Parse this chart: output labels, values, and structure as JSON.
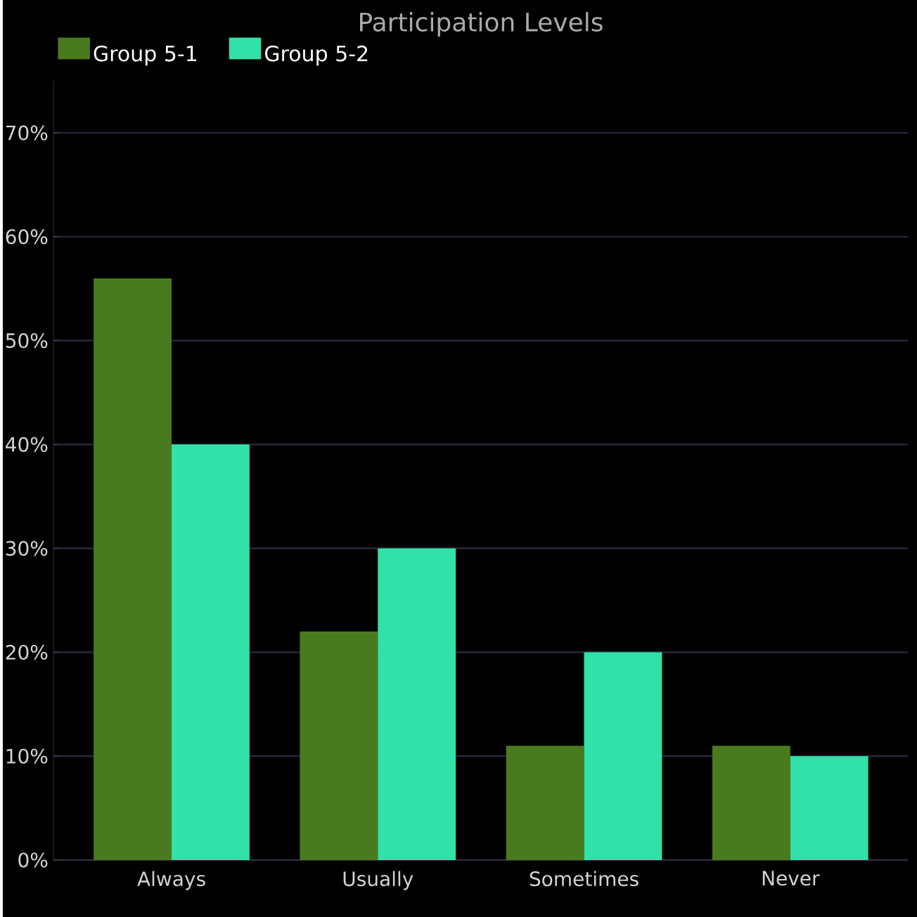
{
  "chart_data": {
    "type": "bar",
    "title": "Participation Levels",
    "categories": [
      "Always",
      "Usually",
      "Sometimes",
      "Never"
    ],
    "series": [
      {
        "name": "Group 5-1",
        "color": "#4a7a1e",
        "values": [
          56,
          22,
          11,
          11
        ]
      },
      {
        "name": "Group 5-2",
        "color": "#31e1a9",
        "values": [
          40,
          30,
          20,
          10
        ]
      }
    ],
    "ylim": [
      0,
      75
    ],
    "yticks": [
      {
        "value": 0,
        "label": "0%"
      },
      {
        "value": 10,
        "label": "10%"
      },
      {
        "value": 20,
        "label": "20%"
      },
      {
        "value": 30,
        "label": "30%"
      },
      {
        "value": 40,
        "label": "40%"
      },
      {
        "value": 50,
        "label": "50%"
      },
      {
        "value": 60,
        "label": "60%"
      },
      {
        "value": 70,
        "label": "70%"
      }
    ],
    "grid": "y",
    "legend": "top left"
  }
}
